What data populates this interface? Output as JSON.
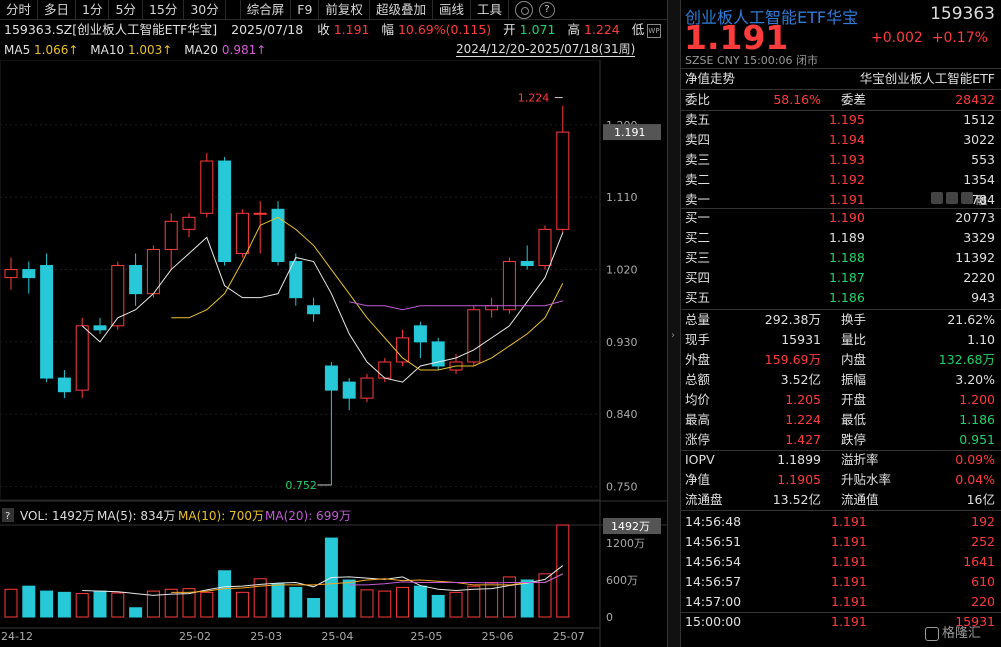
{
  "toolbar": {
    "left": [
      "分时",
      "多日",
      "1分",
      "5分",
      "15分",
      "30分"
    ],
    "right": [
      "综合屏",
      "F9",
      "前复权",
      "超级叠加",
      "画线",
      "工具"
    ]
  },
  "info": {
    "code": "159363.SZ[创业板人工智能ETF华宝]",
    "date": "2025/07/18",
    "shou_label": "收",
    "shou": "1.191",
    "fu_label": "幅",
    "fu": "10.69%(0.115)",
    "kai_label": "开",
    "kai": "1.071",
    "gao_label": "高",
    "gao": "1.224",
    "di_label": "低"
  },
  "ma": {
    "ma5_label": "MA5",
    "ma5": "1.066↑",
    "ma10_label": "MA10",
    "ma10": "1.003↑",
    "ma20_label": "MA20",
    "ma20": "0.981↑"
  },
  "range": "2024/12/20-2025/07/18(31周)",
  "wp": "WP",
  "vol_legend": {
    "q": "?",
    "vol": "VOL: 1492万",
    "ma5": "MA(5): 834万",
    "ma10": "MA(10): 700万",
    "ma20": "MA(20): 699万"
  },
  "chart_data": {
    "type": "candlestick",
    "price_axis": {
      "ticks": [
        0.75,
        0.84,
        0.93,
        1.02,
        1.11,
        1.2
      ],
      "tick_labels": [
        "0.750",
        "0.840",
        "0.930",
        "1.020",
        "1.110",
        "1.200"
      ],
      "current": "1.191"
    },
    "vol_axis": {
      "ticks": [
        0,
        600,
        1200
      ],
      "tick_labels": [
        "0",
        "600万",
        "1200万"
      ],
      "current": "1492万"
    },
    "x_labels": [
      {
        "i": 0,
        "t": "24-12"
      },
      {
        "i": 10,
        "t": "25-02"
      },
      {
        "i": 14,
        "t": "25-03"
      },
      {
        "i": 18,
        "t": "25-04"
      },
      {
        "i": 23,
        "t": "25-05"
      },
      {
        "i": 27,
        "t": "25-06"
      },
      {
        "i": 31,
        "t": "25-07"
      }
    ],
    "annotations": {
      "high": "1.224",
      "low": "0.752"
    },
    "candles": [
      {
        "o": 1.01,
        "c": 1.02,
        "h": 1.035,
        "l": 0.995,
        "v": 450
      },
      {
        "o": 1.02,
        "c": 1.01,
        "h": 1.03,
        "l": 0.99,
        "v": 500
      },
      {
        "o": 1.025,
        "c": 0.885,
        "h": 1.04,
        "l": 0.88,
        "v": 420
      },
      {
        "o": 0.885,
        "c": 0.868,
        "h": 0.895,
        "l": 0.86,
        "v": 400
      },
      {
        "o": 0.87,
        "c": 0.95,
        "h": 0.96,
        "l": 0.86,
        "v": 380
      },
      {
        "o": 0.95,
        "c": 0.945,
        "h": 0.96,
        "l": 0.94,
        "v": 420
      },
      {
        "o": 0.95,
        "c": 1.025,
        "h": 1.03,
        "l": 0.945,
        "v": 390
      },
      {
        "o": 1.025,
        "c": 0.99,
        "h": 1.04,
        "l": 0.975,
        "v": 150
      },
      {
        "o": 0.99,
        "c": 1.045,
        "h": 1.05,
        "l": 0.985,
        "v": 420
      },
      {
        "o": 1.045,
        "c": 1.08,
        "h": 1.09,
        "l": 1.02,
        "v": 450
      },
      {
        "o": 1.07,
        "c": 1.085,
        "h": 1.09,
        "l": 1.06,
        "v": 460
      },
      {
        "o": 1.09,
        "c": 1.155,
        "h": 1.165,
        "l": 1.085,
        "v": 400
      },
      {
        "o": 1.155,
        "c": 1.03,
        "h": 1.16,
        "l": 1.025,
        "v": 750
      },
      {
        "o": 1.04,
        "c": 1.09,
        "h": 1.095,
        "l": 1.035,
        "v": 400
      },
      {
        "o": 1.09,
        "c": 1.09,
        "h": 1.105,
        "l": 1.04,
        "v": 620
      },
      {
        "o": 1.095,
        "c": 1.03,
        "h": 1.105,
        "l": 1.025,
        "v": 540
      },
      {
        "o": 1.03,
        "c": 0.985,
        "h": 1.04,
        "l": 0.975,
        "v": 480
      },
      {
        "o": 0.975,
        "c": 0.965,
        "h": 0.985,
        "l": 0.955,
        "v": 300
      },
      {
        "o": 0.9,
        "c": 0.87,
        "h": 0.905,
        "l": 0.752,
        "v": 1280
      },
      {
        "o": 0.88,
        "c": 0.86,
        "h": 0.885,
        "l": 0.845,
        "v": 600
      },
      {
        "o": 0.86,
        "c": 0.885,
        "h": 0.89,
        "l": 0.855,
        "v": 440
      },
      {
        "o": 0.885,
        "c": 0.905,
        "h": 0.91,
        "l": 0.88,
        "v": 420
      },
      {
        "o": 0.905,
        "c": 0.935,
        "h": 0.945,
        "l": 0.9,
        "v": 480
      },
      {
        "o": 0.95,
        "c": 0.93,
        "h": 0.955,
        "l": 0.91,
        "v": 500
      },
      {
        "o": 0.93,
        "c": 0.9,
        "h": 0.935,
        "l": 0.895,
        "v": 350
      },
      {
        "o": 0.895,
        "c": 0.905,
        "h": 0.915,
        "l": 0.89,
        "v": 400
      },
      {
        "o": 0.905,
        "c": 0.97,
        "h": 0.975,
        "l": 0.9,
        "v": 500
      },
      {
        "o": 0.97,
        "c": 0.975,
        "h": 0.985,
        "l": 0.96,
        "v": 560
      },
      {
        "o": 0.97,
        "c": 1.03,
        "h": 1.035,
        "l": 0.965,
        "v": 650
      },
      {
        "o": 1.03,
        "c": 1.025,
        "h": 1.05,
        "l": 1.02,
        "v": 600
      },
      {
        "o": 1.025,
        "c": 1.07,
        "h": 1.075,
        "l": 1.02,
        "v": 700
      },
      {
        "o": 1.07,
        "c": 1.191,
        "h": 1.224,
        "l": 1.065,
        "v": 1492
      }
    ],
    "ma5": [
      null,
      null,
      null,
      null,
      0.95,
      0.93,
      0.96,
      0.97,
      0.99,
      1.02,
      1.04,
      1.06,
      1.0,
      0.985,
      0.985,
      0.99,
      1.035,
      1.03,
      0.99,
      0.94,
      0.905,
      0.885,
      0.88,
      0.9,
      0.905,
      0.91,
      0.92,
      0.935,
      0.95,
      0.98,
      1.01,
      1.066
    ],
    "ma10": [
      null,
      null,
      null,
      null,
      null,
      null,
      null,
      null,
      null,
      0.96,
      0.96,
      0.97,
      0.99,
      1.03,
      1.075,
      1.085,
      1.07,
      1.05,
      1.02,
      0.99,
      0.96,
      0.935,
      0.91,
      0.895,
      0.895,
      0.9,
      0.9,
      0.91,
      0.925,
      0.94,
      0.96,
      1.003
    ],
    "ma20": [
      null,
      null,
      null,
      null,
      null,
      null,
      null,
      null,
      null,
      null,
      null,
      null,
      null,
      null,
      null,
      null,
      null,
      null,
      null,
      0.98,
      0.975,
      0.975,
      0.97,
      0.975,
      0.975,
      0.975,
      0.975,
      0.975,
      0.975,
      0.975,
      0.975,
      0.981
    ],
    "vol_ma5": [
      null,
      null,
      null,
      null,
      430,
      420,
      410,
      380,
      350,
      370,
      380,
      440,
      490,
      500,
      530,
      550,
      560,
      490,
      640,
      650,
      630,
      610,
      650,
      510,
      450,
      430,
      450,
      460,
      510,
      550,
      610,
      834
    ],
    "vol_ma10": [
      null,
      null,
      null,
      null,
      null,
      null,
      null,
      null,
      null,
      400,
      400,
      420,
      460,
      470,
      500,
      520,
      520,
      520,
      540,
      560,
      600,
      620,
      590,
      600,
      580,
      560,
      520,
      520,
      520,
      560,
      560,
      700
    ],
    "vol_ma20": [
      null,
      null,
      null,
      null,
      null,
      null,
      null,
      null,
      null,
      null,
      null,
      null,
      null,
      null,
      null,
      null,
      null,
      null,
      null,
      520,
      520,
      540,
      570,
      560,
      560,
      560,
      560,
      550,
      560,
      560,
      560,
      699
    ]
  },
  "right": {
    "name": "创业板人工智能ETF华宝",
    "code": "159363",
    "price": "1.191",
    "chg": "+0.002",
    "pct": "+0.17%",
    "sub": "SZSE  CNY  15:00:06  闭市",
    "nav_trend": "净值走势",
    "nav_fund": "华宝创业板人工智能ETF",
    "weibi_label": "委比",
    "weibi": "58.16%",
    "weicha_label": "委差",
    "weicha": "28432",
    "asks": [
      {
        "l": "卖五",
        "p": "1.195",
        "v": "1512"
      },
      {
        "l": "卖四",
        "p": "1.194",
        "v": "3022"
      },
      {
        "l": "卖三",
        "p": "1.193",
        "v": "553"
      },
      {
        "l": "卖二",
        "p": "1.192",
        "v": "1354"
      },
      {
        "l": "卖一",
        "p": "1.191",
        "v": "3784"
      }
    ],
    "bids": [
      {
        "l": "买一",
        "p": "1.190",
        "v": "20773"
      },
      {
        "l": "买二",
        "p": "1.189",
        "v": "3329"
      },
      {
        "l": "买三",
        "p": "1.188",
        "v": "11392"
      },
      {
        "l": "买四",
        "p": "1.187",
        "v": "2220"
      },
      {
        "l": "买五",
        "p": "1.186",
        "v": "943"
      }
    ],
    "rong": "融",
    "stats": [
      {
        "l1": "总量",
        "v1": "292.38万",
        "c1": "w",
        "l2": "换手",
        "v2": "21.62%",
        "c2": "w"
      },
      {
        "l1": "现手",
        "v1": "15931",
        "c1": "w",
        "l2": "量比",
        "v2": "1.10",
        "c2": "w"
      },
      {
        "l1": "外盘",
        "v1": "159.69万",
        "c1": "r",
        "l2": "内盘",
        "v2": "132.68万",
        "c2": "g"
      },
      {
        "l1": "总额",
        "v1": "3.52亿",
        "c1": "w",
        "l2": "振幅",
        "v2": "3.20%",
        "c2": "w"
      },
      {
        "l1": "均价",
        "v1": "1.205",
        "c1": "r",
        "l2": "开盘",
        "v2": "1.200",
        "c2": "r"
      },
      {
        "l1": "最高",
        "v1": "1.224",
        "c1": "r",
        "l2": "最低",
        "v2": "1.186",
        "c2": "g"
      },
      {
        "l1": "涨停",
        "v1": "1.427",
        "c1": "r",
        "l2": "跌停",
        "v2": "0.951",
        "c2": "g"
      }
    ],
    "stats2": [
      {
        "l1": "IOPV",
        "v1": "1.1899",
        "c1": "w",
        "l2": "溢折率",
        "v2": "0.09%",
        "c2": "r"
      },
      {
        "l1": "净值",
        "v1": "1.1905",
        "c1": "r",
        "l2": "升贴水率",
        "v2": "0.04%",
        "c2": "r"
      },
      {
        "l1": "流通盘",
        "v1": "13.52亿",
        "c1": "w",
        "l2": "流通值",
        "v2": "16亿",
        "c2": "w"
      }
    ],
    "ticks": [
      {
        "t": "14:56:48",
        "p": "1.191",
        "v": "192"
      },
      {
        "t": "14:56:51",
        "p": "1.191",
        "v": "252"
      },
      {
        "t": "14:56:54",
        "p": "1.191",
        "v": "1641"
      },
      {
        "t": "14:56:57",
        "p": "1.191",
        "v": "610"
      },
      {
        "t": "14:57:00",
        "p": "1.191",
        "v": "220"
      },
      {
        "t": "15:00:00",
        "p": "1.191",
        "v": "15931"
      }
    ],
    "logo": "格隆汇"
  },
  "colors": {
    "up": "#ff3b3b",
    "down": "#27c8d8",
    "ma5": "#e8e8e8",
    "ma10": "#e8c12a",
    "ma20": "#c15bd6"
  }
}
